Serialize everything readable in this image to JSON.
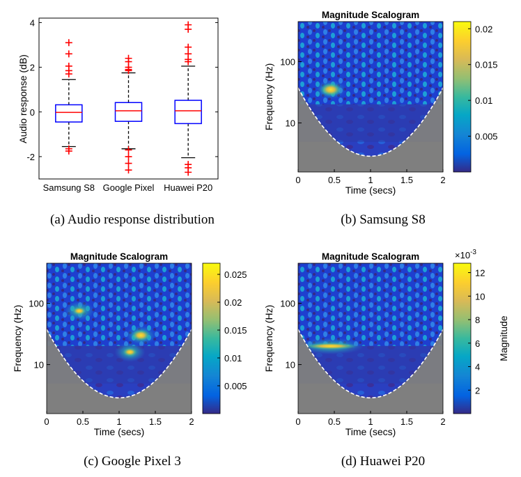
{
  "figure": {
    "captions": [
      "(a) Audio response distribution",
      "(b) Samsung S8",
      "(c) Google Pixel 3",
      "(d) Huawei P20"
    ]
  },
  "chart_data": [
    {
      "type": "box",
      "caption": "(a) Audio response distribution",
      "ylabel": "Audio response (dB)",
      "ylim": [
        -3,
        4.2
      ],
      "yticks": [
        "-2",
        "0",
        "2",
        "4"
      ],
      "categories": [
        "Samsung S8",
        "Google Pixel",
        "Huawei P20"
      ],
      "boxes": [
        {
          "name": "Samsung S8",
          "whisker_low": -1.55,
          "q1": -0.45,
          "median": -0.02,
          "q3": 0.32,
          "whisker_high": 1.45,
          "outliers": [
            3.1,
            2.6,
            2.05,
            1.85,
            1.7,
            -1.65,
            -1.75
          ]
        },
        {
          "name": "Google Pixel",
          "whisker_low": -1.65,
          "q1": -0.42,
          "median": 0.05,
          "q3": 0.42,
          "whisker_high": 1.75,
          "outliers": [
            2.4,
            2.25,
            2.0,
            1.9,
            1.85,
            -1.7,
            -2.0,
            -2.3,
            -2.6
          ]
        },
        {
          "name": "Huawei P20",
          "whisker_low": -2.05,
          "q1": -0.52,
          "median": 0.05,
          "q3": 0.52,
          "whisker_high": 2.05,
          "outliers": [
            3.9,
            3.7,
            2.9,
            2.6,
            2.35,
            2.25,
            -2.35,
            -2.5,
            -2.7
          ]
        }
      ],
      "colors": {
        "box": "#0000ff",
        "median": "#ff0000",
        "outlier": "#ff0000"
      }
    },
    {
      "type": "heatmap",
      "caption": "(b) Samsung S8",
      "title": "Magnitude Scalogram",
      "xlabel": "Time (secs)",
      "ylabel": "Frequency (Hz)",
      "xticks": [
        "0",
        "0.5",
        "1",
        "1.5",
        "2"
      ],
      "xlim": [
        0,
        2
      ],
      "yticks": [
        "10",
        "100"
      ],
      "colorbar_ticks": [
        "0.02",
        "0.015",
        "0.01",
        "0.005"
      ],
      "colorbar_max": 0.021,
      "hotspots": [
        {
          "t": 0.45,
          "f": 35,
          "level": 1.0
        }
      ]
    },
    {
      "type": "heatmap",
      "caption": "(c) Google Pixel 3",
      "title": "Magnitude Scalogram",
      "xlabel": "Time (secs)",
      "ylabel": "Frequency (Hz)",
      "xticks": [
        "0",
        "0.5",
        "1",
        "1.5",
        "2"
      ],
      "xlim": [
        0,
        2
      ],
      "yticks": [
        "10",
        "100"
      ],
      "colorbar_ticks": [
        "0.025",
        "0.02",
        "0.015",
        "0.01",
        "0.005"
      ],
      "colorbar_max": 0.027,
      "hotspots": [
        {
          "t": 1.3,
          "f": 30,
          "level": 0.85
        },
        {
          "t": 0.45,
          "f": 75,
          "level": 0.5
        },
        {
          "t": 1.15,
          "f": 16,
          "level": 0.55
        }
      ]
    },
    {
      "type": "heatmap",
      "caption": "(d) Huawei P20",
      "title": "Magnitude Scalogram",
      "xlabel": "Time (secs)",
      "ylabel": "Frequency (Hz)",
      "xticks": [
        "0",
        "0.5",
        "1",
        "1.5",
        "2"
      ],
      "xlim": [
        0,
        2
      ],
      "yticks": [
        "10",
        "100"
      ],
      "colorbar_ticks": [
        "12",
        "10",
        "8",
        "6",
        "4",
        "2"
      ],
      "colorbar_multiplier": "×10",
      "colorbar_exponent": "-3",
      "colorbar_label": "Magnitude",
      "colorbar_max": 12.8,
      "hotspots": [
        {
          "t": 0.45,
          "f": 20,
          "level": 0.95,
          "band": [
            0.05,
            0.85
          ]
        }
      ]
    }
  ]
}
